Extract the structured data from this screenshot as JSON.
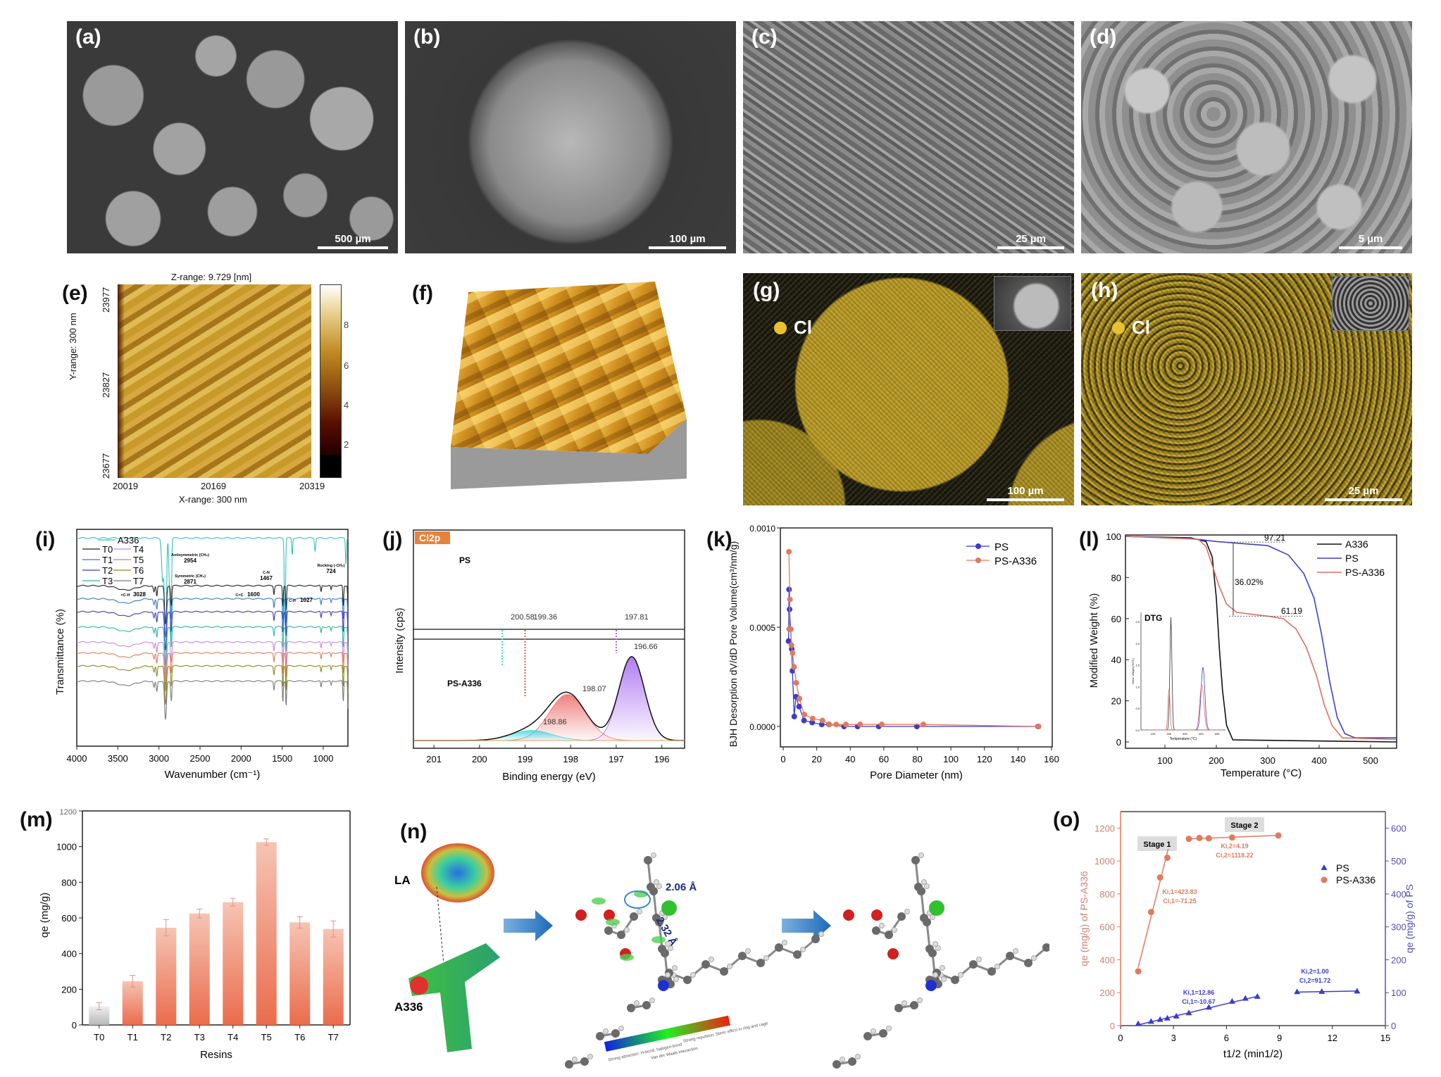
{
  "panels": {
    "a": {
      "label": "(a)",
      "scale": "500 µm"
    },
    "b": {
      "label": "(b)",
      "scale": "100 µm"
    },
    "c": {
      "label": "(c)",
      "scale": "25 µm"
    },
    "d": {
      "label": "(d)",
      "scale": "5 µm"
    },
    "e": {
      "label": "(e)",
      "zrange": "Z-range:  9.729 [nm]",
      "xrange": "X-range: 300 nm",
      "yrange": "Y-range: 300 nm",
      "xticks": [
        "20019",
        "20169",
        "20319"
      ],
      "yticks": [
        "23977",
        "23827",
        "23677"
      ],
      "cbticks": [
        "8",
        "6",
        "4",
        "2"
      ]
    },
    "f": {
      "label": "(f)"
    },
    "g": {
      "label": "(g)",
      "element": "Cl",
      "scale": "100 µm"
    },
    "h": {
      "label": "(h)",
      "element": "Cl",
      "scale": "25 µm"
    },
    "i": {
      "label": "(i)"
    },
    "j": {
      "label": "(j)"
    },
    "k": {
      "label": "(k)"
    },
    "l": {
      "label": "(l)"
    },
    "m": {
      "label": "(m)"
    },
    "n": {
      "label": "(n)",
      "la": "LA",
      "a336": "A336",
      "dist1": "2.06 Å",
      "dist2": "2.32 Å",
      "bar_labels": [
        "Strong attraction: H-bond, halogen-bond",
        "Van der Waals interaction",
        "Strong repulsion: Steric effect in ring and cage"
      ]
    },
    "o": {
      "label": "(o)"
    }
  },
  "colors": {
    "ps": "#3b3bcc",
    "psa336": "#e07a5f",
    "a336": "#111111",
    "cl": "#e8c030"
  },
  "chart_data": [
    {
      "id": "i",
      "type": "line",
      "title": "",
      "xlabel": "Wavenumber (cm⁻¹)",
      "ylabel": "Transmittance (%)",
      "xlim": [
        4000,
        700
      ],
      "xticks": [
        "4000",
        "3500",
        "3000",
        "2500",
        "2000",
        "1500",
        "1000"
      ],
      "series": [
        {
          "name": "A336",
          "color": "#35c0b8",
          "offset": 96,
          "peaks": [
            [
              2954,
              20,
              18
            ],
            [
              2920,
              70,
              14
            ],
            [
              2871,
              22,
              12
            ],
            [
              2854,
              45,
              10
            ],
            [
              1467,
              42,
              10
            ],
            [
              1378,
              8,
              8
            ],
            [
              1100,
              6,
              10
            ],
            [
              724,
              12,
              8
            ]
          ]
        },
        {
          "name": "T0",
          "color": "#222222",
          "offset": 74
        },
        {
          "name": "T1",
          "color": "#3a78c8",
          "offset": 68
        },
        {
          "name": "T2",
          "color": "#3d3db8",
          "offset": 62
        },
        {
          "name": "T3",
          "color": "#2db59e",
          "offset": 55
        },
        {
          "name": "T4",
          "color": "#c58ae0",
          "offset": 48
        },
        {
          "name": "T5",
          "color": "#e07a5f",
          "offset": 43
        },
        {
          "name": "T6",
          "color": "#8a8a1e",
          "offset": 37
        },
        {
          "name": "T7",
          "color": "#7a7a7a",
          "offset": 30
        }
      ],
      "resin_peaks": [
        [
          3400,
          2,
          150
        ],
        [
          3060,
          3,
          12
        ],
        [
          3026,
          5,
          10
        ],
        [
          2920,
          18,
          16
        ],
        [
          2850,
          9,
          10
        ],
        [
          1600,
          4,
          8
        ],
        [
          1492,
          10,
          7
        ],
        [
          1452,
          12,
          7
        ],
        [
          1027,
          3,
          8
        ],
        [
          905,
          2,
          8
        ],
        [
          757,
          10,
          7
        ],
        [
          698,
          14,
          6
        ]
      ],
      "annotations": [
        {
          "title": "Antisymmetric (CH₃)",
          "value": "2954"
        },
        {
          "title": "Symmetric (CH₃)",
          "value": "2871"
        },
        {
          "title": "C-N",
          "value": "1467"
        },
        {
          "title": "Rocking (-CH₂)",
          "value": "724"
        },
        {
          "title": "=C-H",
          "value": "3028"
        },
        {
          "title": "C=C",
          "value": "1600"
        },
        {
          "title": "C-H",
          "value": "1027"
        }
      ]
    },
    {
      "id": "j",
      "type": "area",
      "title": "Cl2p",
      "xlabel": "Binding energy (eV)",
      "ylabel": "Intensity (cps)",
      "xlim": [
        201.45,
        195.5
      ],
      "xticks": [
        "201",
        "200",
        "199",
        "198",
        "197",
        "196"
      ],
      "sample_labels": [
        "PS",
        "PS-A336"
      ],
      "ps_peaks": [
        "200.58",
        "199.36",
        "197.81"
      ],
      "components": [
        {
          "center": 196.66,
          "height": 1.0,
          "sigma": 0.28,
          "color": "#a566f0",
          "label": "196.66"
        },
        {
          "center": 198.07,
          "height": 0.55,
          "sigma": 0.4,
          "color": "#ee6b6b",
          "label": "198.07"
        },
        {
          "center": 198.86,
          "height": 0.12,
          "sigma": 0.45,
          "color": "#3ad8e0",
          "label": "198.86"
        }
      ]
    },
    {
      "id": "k",
      "type": "line",
      "xlabel": "Pore Diameter (nm)",
      "ylabel": "BJH Desorption dV/dD Pore Volume(cm³/nm/g)",
      "xlim": [
        -2,
        160
      ],
      "ylim": [
        -0.0002,
        0.001
      ],
      "xticks": [
        "0",
        "20",
        "40",
        "60",
        "80",
        "100",
        "120",
        "140",
        "160"
      ],
      "yticks": [
        "0.0000",
        "0.0005",
        "0.0010"
      ],
      "series": [
        {
          "name": "PS",
          "color": "#3b3bcc",
          "x": [
            3.2,
            3.5,
            3.8,
            4.4,
            5.1,
            5.5,
            6.6,
            7.6,
            9.5,
            12.4,
            17.3,
            23,
            27.3,
            36.3,
            44.4,
            57,
            79.7,
            152
          ],
          "y": [
            0.00043,
            0.00069,
            0.00059,
            0.00049,
            0.00039,
            0.00028,
            5e-05,
            0.00015,
            0.0001,
            3e-05,
            2e-05,
            1e-05,
            1e-05,
            0,
            0,
            0,
            0,
            0
          ]
        },
        {
          "name": "PS-A336",
          "color": "#e07a5f",
          "x": [
            3.4,
            4.0,
            3.6,
            4.6,
            4.9,
            5.6,
            6.5,
            7.8,
            9.7,
            12.6,
            17.6,
            23.4,
            27.5,
            31.6,
            37.4,
            45.9,
            58.8,
            83.6,
            152.3
          ],
          "y": [
            0.00088,
            0.00064,
            0.00049,
            0.00049,
            0.00041,
            0.00037,
            0.0003,
            0.00022,
            0.00014,
            6e-05,
            4e-05,
            3e-05,
            1e-05,
            1e-05,
            1e-05,
            1e-05,
            1e-05,
            1e-05,
            0
          ]
        }
      ]
    },
    {
      "id": "l",
      "type": "line",
      "xlabel": "Temperature (°C)",
      "ylabel": "Modified Weight (%)",
      "xlim": [
        25,
        550
      ],
      "ylim": [
        -3,
        101
      ],
      "xticks": [
        "100",
        "200",
        "300",
        "400",
        "500"
      ],
      "yticks": [
        "0",
        "20",
        "40",
        "60",
        "80",
        "100"
      ],
      "series": [
        {
          "name": "A336",
          "color": "#111111",
          "points": [
            [
              25,
              100
            ],
            [
              150,
              99.3
            ],
            [
              180,
              97.5
            ],
            [
              192,
              90
            ],
            [
              200,
              70
            ],
            [
              206,
              45
            ],
            [
              212,
              25
            ],
            [
              220,
              8
            ],
            [
              232,
              1
            ],
            [
              550,
              0
            ]
          ]
        },
        {
          "name": "PS",
          "color": "#4040c8",
          "points": [
            [
              25,
              100
            ],
            [
              150,
              99
            ],
            [
              200,
              97.5
            ],
            [
              300,
              95.5
            ],
            [
              340,
              91
            ],
            [
              370,
              82
            ],
            [
              390,
              70
            ],
            [
              405,
              52
            ],
            [
              420,
              30
            ],
            [
              435,
              12
            ],
            [
              450,
              4
            ],
            [
              470,
              2
            ],
            [
              550,
              2
            ]
          ]
        },
        {
          "name": "PS-A336",
          "color": "#d97060",
          "points": [
            [
              25,
              100
            ],
            [
              165,
              98.6
            ],
            [
              180,
              95
            ],
            [
              192,
              86
            ],
            [
              205,
              76
            ],
            [
              220,
              67
            ],
            [
              240,
              63
            ],
            [
              300,
              61.2
            ],
            [
              330,
              60
            ],
            [
              355,
              55
            ],
            [
              375,
              46
            ],
            [
              395,
              32
            ],
            [
              410,
              18
            ],
            [
              425,
              8
            ],
            [
              445,
              2
            ],
            [
              550,
              1.2
            ]
          ]
        }
      ],
      "annotations": [
        "97.21",
        "36.02%",
        "61.19"
      ],
      "inset": {
        "title": "DTG",
        "xlabel": "Temperature (°C)",
        "ylabel": "Deriv. Weight (%/°C)",
        "xticks": [
          "100",
          "200",
          "300",
          "400",
          "500"
        ],
        "yticks": [
          "0.0",
          "0.5",
          "1.0",
          "1.5",
          "2.0",
          "2.5"
        ]
      }
    },
    {
      "id": "m",
      "type": "bar",
      "xlabel": "Resins",
      "ylabel": "qe (mg/g)",
      "categories": [
        "T0",
        "T1",
        "T2",
        "T3",
        "T4",
        "T5",
        "T6",
        "T7"
      ],
      "values": [
        105,
        245,
        545,
        625,
        688,
        1025,
        575,
        538
      ],
      "errors": [
        20,
        33,
        45,
        25,
        22,
        18,
        32,
        45
      ],
      "ylim": [
        0,
        1200
      ],
      "yticks": [
        "0",
        "200",
        "400",
        "600",
        "800",
        "1000",
        "1200"
      ]
    },
    {
      "id": "o",
      "type": "scatter",
      "xlabel": "t1/2 (min1/2)",
      "ylabel_left": "qe (mg/g) of PS-A336",
      "ylabel_right": "qe (mg/g) of PS",
      "xlim": [
        0,
        15
      ],
      "ylim_left": [
        0,
        1300
      ],
      "ylim_right": [
        0,
        650
      ],
      "xticks": [
        "0",
        "3",
        "6",
        "9",
        "12",
        "15"
      ],
      "yticks_left": [
        "0",
        "200",
        "400",
        "600",
        "800",
        "1000",
        "1200"
      ],
      "yticks_right": [
        "0",
        "100",
        "200",
        "300",
        "400",
        "500",
        "600"
      ],
      "stages": [
        "Stage 1",
        "Stage 2"
      ],
      "series": [
        {
          "name": "PS-A336",
          "axis": "left",
          "color": "#e07a5f",
          "x": [
            1,
            1.73,
            2.24,
            2.65,
            3.87,
            4.47,
            5,
            6.32,
            8.94
          ],
          "y": [
            330,
            690,
            900,
            1020,
            1135,
            1140,
            1138,
            1143,
            1155
          ],
          "fits": [
            {
              "k": "Ki,1=423.83",
              "c": "Ci,1=-71.25",
              "range": [
                1,
                2.7
              ],
              "slope": 423.83,
              "icpt": -71.25
            },
            {
              "k": "Ki,2=4.19",
              "c": "Ci,2=1118.22",
              "range": [
                3.87,
                8.94
              ],
              "slope": 4.19,
              "icpt": 1118.22
            }
          ]
        },
        {
          "name": "PS",
          "axis": "right",
          "color": "#3b3bcc",
          "x": [
            1,
            1.73,
            2.24,
            2.65,
            3.16,
            3.87,
            5,
            6.32,
            7.07,
            7.75,
            10,
            11.4,
            13.4
          ],
          "y": [
            5,
            12,
            18,
            22,
            28,
            38,
            55,
            73,
            82,
            88,
            102,
            103,
            104
          ],
          "fits": [
            {
              "k": "Ki,1=12.86",
              "c": "Ci,1=-10.67",
              "range": [
                1,
                7.75
              ],
              "slope": 12.86,
              "icpt": -10.67
            },
            {
              "k": "Ki,2=1.00",
              "c": "Ci,2=91.72",
              "range": [
                10,
                13.4
              ],
              "slope": 1.0,
              "icpt": 91.72
            }
          ]
        }
      ]
    }
  ]
}
